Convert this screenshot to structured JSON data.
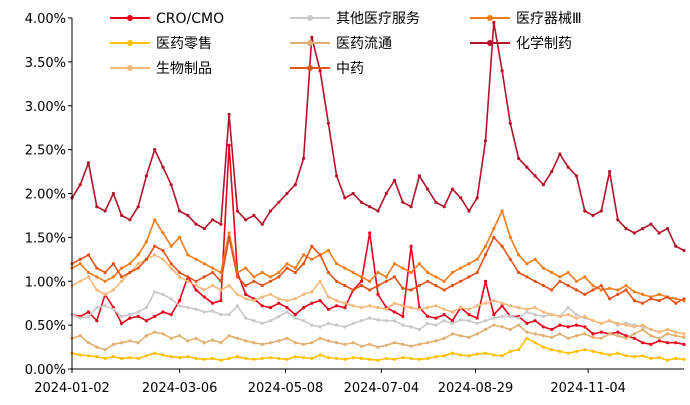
{
  "chart_data": {
    "type": "line",
    "title": "",
    "xlabel": "",
    "ylabel": "",
    "ylim": [
      0,
      4
    ],
    "y_ticks": [
      "0.00%",
      "0.50%",
      "1.00%",
      "1.50%",
      "2.00%",
      "2.50%",
      "3.00%",
      "3.50%",
      "4.00%"
    ],
    "x_ticks": [
      "2024-01-02",
      "2024-03-06",
      "2024-05-08",
      "2024-07-04",
      "2024-08-29",
      "2024-11-04"
    ],
    "x_start": "2024-01-02",
    "x_end": "2024-12-31",
    "grid": false,
    "legend_position": "top",
    "series": [
      {
        "name": "CRO/CMO",
        "color": "#e8001c",
        "values": [
          0.62,
          0.6,
          0.65,
          0.55,
          0.85,
          0.7,
          0.52,
          0.58,
          0.6,
          0.55,
          0.6,
          0.65,
          0.62,
          0.78,
          1.05,
          0.9,
          0.82,
          0.75,
          0.78,
          2.55,
          1.1,
          0.85,
          0.8,
          0.72,
          0.7,
          0.75,
          0.7,
          0.62,
          0.7,
          0.75,
          0.78,
          0.68,
          0.72,
          0.7,
          0.9,
          1.0,
          1.55,
          0.85,
          0.7,
          0.65,
          0.6,
          1.4,
          0.7,
          0.6,
          0.58,
          0.62,
          0.55,
          0.7,
          0.62,
          0.58,
          1.0,
          0.62,
          0.72,
          0.6,
          0.6,
          0.52,
          0.55,
          0.48,
          0.45,
          0.5,
          0.48,
          0.5,
          0.48,
          0.4,
          0.42,
          0.4,
          0.42,
          0.38,
          0.35,
          0.3,
          0.28,
          0.32,
          0.3,
          0.3,
          0.28
        ]
      },
      {
        "name": "其他医疗服务",
        "color": "#c8c8c8",
        "values": [
          0.62,
          0.58,
          0.6,
          0.7,
          0.72,
          0.68,
          0.6,
          0.62,
          0.65,
          0.7,
          0.88,
          0.85,
          0.8,
          0.72,
          0.7,
          0.68,
          0.65,
          0.66,
          0.62,
          0.62,
          0.72,
          0.58,
          0.55,
          0.52,
          0.55,
          0.6,
          0.65,
          0.58,
          0.55,
          0.5,
          0.48,
          0.52,
          0.5,
          0.48,
          0.52,
          0.55,
          0.58,
          0.56,
          0.55,
          0.55,
          0.5,
          0.48,
          0.45,
          0.52,
          0.5,
          0.55,
          0.52,
          0.56,
          0.55,
          0.52,
          0.55,
          0.58,
          0.6,
          0.6,
          0.58,
          0.65,
          0.62,
          0.6,
          0.62,
          0.6,
          0.7,
          0.62,
          0.58,
          0.55,
          0.52,
          0.55,
          0.5,
          0.52,
          0.5,
          0.48,
          0.45,
          0.42,
          0.45,
          0.42,
          0.4
        ]
      },
      {
        "name": "医疗器械Ⅲ",
        "color": "#f07d1a",
        "values": [
          1.15,
          1.2,
          1.1,
          1.05,
          1.0,
          1.05,
          1.15,
          1.2,
          1.3,
          1.45,
          1.7,
          1.55,
          1.4,
          1.5,
          1.3,
          1.25,
          1.2,
          1.15,
          1.1,
          1.55,
          1.1,
          1.15,
          1.05,
          1.1,
          1.05,
          1.1,
          1.2,
          1.15,
          1.3,
          1.25,
          1.3,
          1.35,
          1.2,
          1.15,
          1.1,
          1.05,
          1.0,
          1.1,
          1.05,
          1.2,
          1.15,
          1.1,
          1.2,
          1.1,
          1.05,
          1.0,
          1.1,
          1.15,
          1.2,
          1.25,
          1.4,
          1.6,
          1.8,
          1.5,
          1.3,
          1.2,
          1.25,
          1.15,
          1.1,
          1.05,
          1.1,
          1.0,
          1.05,
          0.95,
          0.9,
          0.92,
          0.9,
          0.95,
          0.88,
          0.85,
          0.82,
          0.85,
          0.82,
          0.8,
          0.78
        ]
      },
      {
        "name": "医药零售",
        "color": "#ffc000",
        "values": [
          0.18,
          0.16,
          0.15,
          0.14,
          0.12,
          0.14,
          0.12,
          0.13,
          0.12,
          0.15,
          0.18,
          0.16,
          0.14,
          0.13,
          0.14,
          0.12,
          0.11,
          0.12,
          0.1,
          0.12,
          0.14,
          0.12,
          0.11,
          0.12,
          0.13,
          0.12,
          0.11,
          0.14,
          0.13,
          0.12,
          0.16,
          0.13,
          0.12,
          0.11,
          0.13,
          0.12,
          0.11,
          0.1,
          0.12,
          0.11,
          0.13,
          0.12,
          0.11,
          0.12,
          0.14,
          0.15,
          0.18,
          0.16,
          0.15,
          0.17,
          0.18,
          0.16,
          0.15,
          0.2,
          0.22,
          0.35,
          0.3,
          0.25,
          0.22,
          0.2,
          0.18,
          0.2,
          0.22,
          0.2,
          0.18,
          0.16,
          0.18,
          0.15,
          0.14,
          0.15,
          0.12,
          0.13,
          0.1,
          0.12,
          0.11
        ]
      },
      {
        "name": "医药流通",
        "color": "#e0b070",
        "values": [
          0.35,
          0.38,
          0.3,
          0.25,
          0.22,
          0.28,
          0.3,
          0.32,
          0.3,
          0.38,
          0.42,
          0.4,
          0.35,
          0.38,
          0.32,
          0.35,
          0.3,
          0.33,
          0.3,
          0.38,
          0.35,
          0.32,
          0.3,
          0.28,
          0.3,
          0.32,
          0.35,
          0.3,
          0.28,
          0.3,
          0.35,
          0.32,
          0.3,
          0.28,
          0.3,
          0.26,
          0.28,
          0.25,
          0.27,
          0.3,
          0.28,
          0.26,
          0.28,
          0.3,
          0.32,
          0.35,
          0.4,
          0.38,
          0.36,
          0.4,
          0.45,
          0.5,
          0.48,
          0.45,
          0.5,
          0.42,
          0.4,
          0.38,
          0.36,
          0.4,
          0.35,
          0.38,
          0.4,
          0.36,
          0.35,
          0.4,
          0.38,
          0.35,
          0.4,
          0.45,
          0.38,
          0.35,
          0.4,
          0.38,
          0.36
        ]
      },
      {
        "name": "化学制药",
        "color": "#b3122b",
        "values": [
          1.95,
          2.1,
          2.35,
          1.85,
          1.8,
          2.0,
          1.75,
          1.7,
          1.85,
          2.2,
          2.5,
          2.3,
          2.1,
          1.8,
          1.75,
          1.65,
          1.6,
          1.7,
          1.65,
          2.9,
          1.8,
          1.7,
          1.75,
          1.65,
          1.8,
          1.9,
          2.0,
          2.1,
          2.4,
          3.78,
          3.4,
          2.8,
          2.2,
          1.95,
          2.0,
          1.9,
          1.85,
          1.8,
          2.0,
          2.15,
          1.9,
          1.85,
          2.2,
          2.05,
          1.9,
          1.85,
          2.05,
          1.95,
          1.8,
          1.95,
          2.6,
          3.95,
          3.4,
          2.8,
          2.4,
          2.3,
          2.2,
          2.1,
          2.25,
          2.45,
          2.3,
          2.2,
          1.8,
          1.75,
          1.8,
          2.25,
          1.7,
          1.6,
          1.55,
          1.6,
          1.65,
          1.55,
          1.6,
          1.4,
          1.35
        ]
      },
      {
        "name": "生物制品",
        "color": "#f5b979",
        "values": [
          0.95,
          1.0,
          1.05,
          0.9,
          0.85,
          0.9,
          1.0,
          1.1,
          1.2,
          1.25,
          1.3,
          1.25,
          1.15,
          1.05,
          1.0,
          0.95,
          0.9,
          0.95,
          0.9,
          0.95,
          0.85,
          0.8,
          0.78,
          0.82,
          0.85,
          0.8,
          0.78,
          0.8,
          0.85,
          0.88,
          1.0,
          0.82,
          0.78,
          0.75,
          0.72,
          0.7,
          0.72,
          0.7,
          0.68,
          0.75,
          0.72,
          0.7,
          0.68,
          0.7,
          0.72,
          0.68,
          0.65,
          0.7,
          0.68,
          0.72,
          0.75,
          0.78,
          0.75,
          0.72,
          0.7,
          0.68,
          0.7,
          0.65,
          0.62,
          0.6,
          0.62,
          0.58,
          0.6,
          0.55,
          0.52,
          0.55,
          0.52,
          0.5,
          0.48,
          0.5,
          0.45,
          0.42,
          0.45,
          0.42,
          0.4
        ]
      },
      {
        "name": "中药",
        "color": "#e0541b",
        "values": [
          1.2,
          1.25,
          1.3,
          1.15,
          1.1,
          1.2,
          1.05,
          1.1,
          1.15,
          1.25,
          1.4,
          1.35,
          1.2,
          1.1,
          1.05,
          1.0,
          1.05,
          1.1,
          1.0,
          1.5,
          1.05,
          0.95,
          1.0,
          0.95,
          1.0,
          1.05,
          1.15,
          1.1,
          1.2,
          1.4,
          1.3,
          1.1,
          1.0,
          0.95,
          0.9,
          0.95,
          0.9,
          0.95,
          1.0,
          1.05,
          0.92,
          0.9,
          0.95,
          1.0,
          0.95,
          0.9,
          0.95,
          1.0,
          1.05,
          1.1,
          1.3,
          1.5,
          1.4,
          1.25,
          1.1,
          1.05,
          1.0,
          0.95,
          0.9,
          1.0,
          0.95,
          0.9,
          0.85,
          0.9,
          0.95,
          0.8,
          0.85,
          0.9,
          0.78,
          0.75,
          0.8,
          0.78,
          0.82,
          0.75,
          0.8
        ]
      }
    ]
  }
}
